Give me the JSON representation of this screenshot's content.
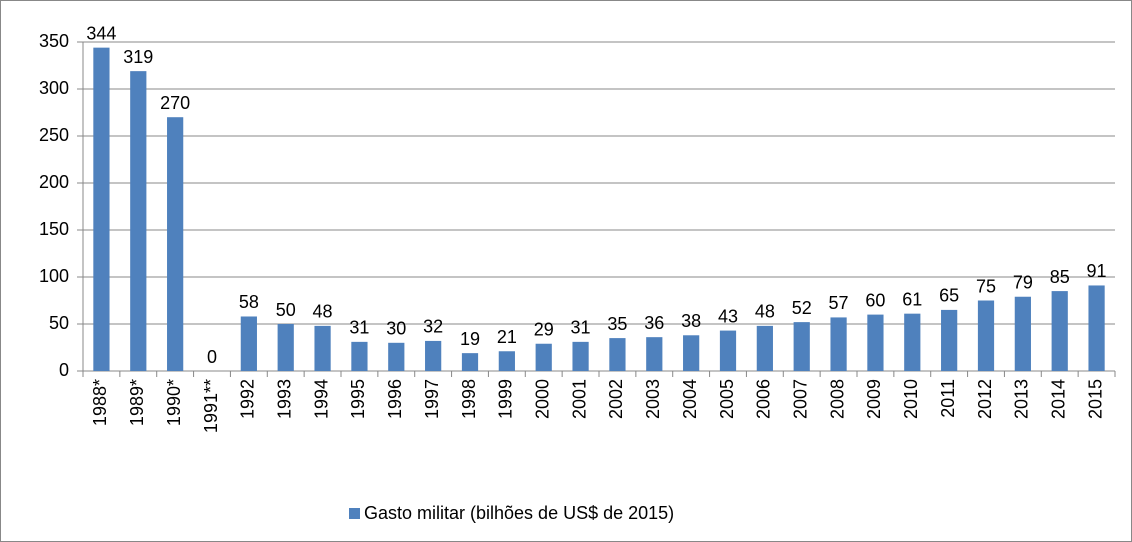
{
  "chart_data": {
    "type": "bar",
    "categories": [
      "1988*",
      "1989*",
      "1990*",
      "1991**",
      "1992",
      "1993",
      "1994",
      "1995",
      "1996",
      "1997",
      "1998",
      "1999",
      "2000",
      "2001",
      "2002",
      "2003",
      "2004",
      "2005",
      "2006",
      "2007",
      "2008",
      "2009",
      "2010",
      "2011",
      "2012",
      "2013",
      "2014",
      "2015"
    ],
    "series": [
      {
        "name": "Gasto militar (bilhões de US$ de 2015)",
        "color": "#4f81bd",
        "values": [
          344,
          319,
          270,
          0,
          58,
          50,
          48,
          31,
          30,
          32,
          19,
          21,
          29,
          31,
          35,
          36,
          38,
          43,
          48,
          52,
          57,
          60,
          61,
          65,
          75,
          79,
          85,
          91
        ]
      }
    ],
    "ylim": [
      0,
      350
    ],
    "yticks": [
      0,
      50,
      100,
      150,
      200,
      250,
      300,
      350
    ],
    "grid": true,
    "legend": "bottom"
  }
}
